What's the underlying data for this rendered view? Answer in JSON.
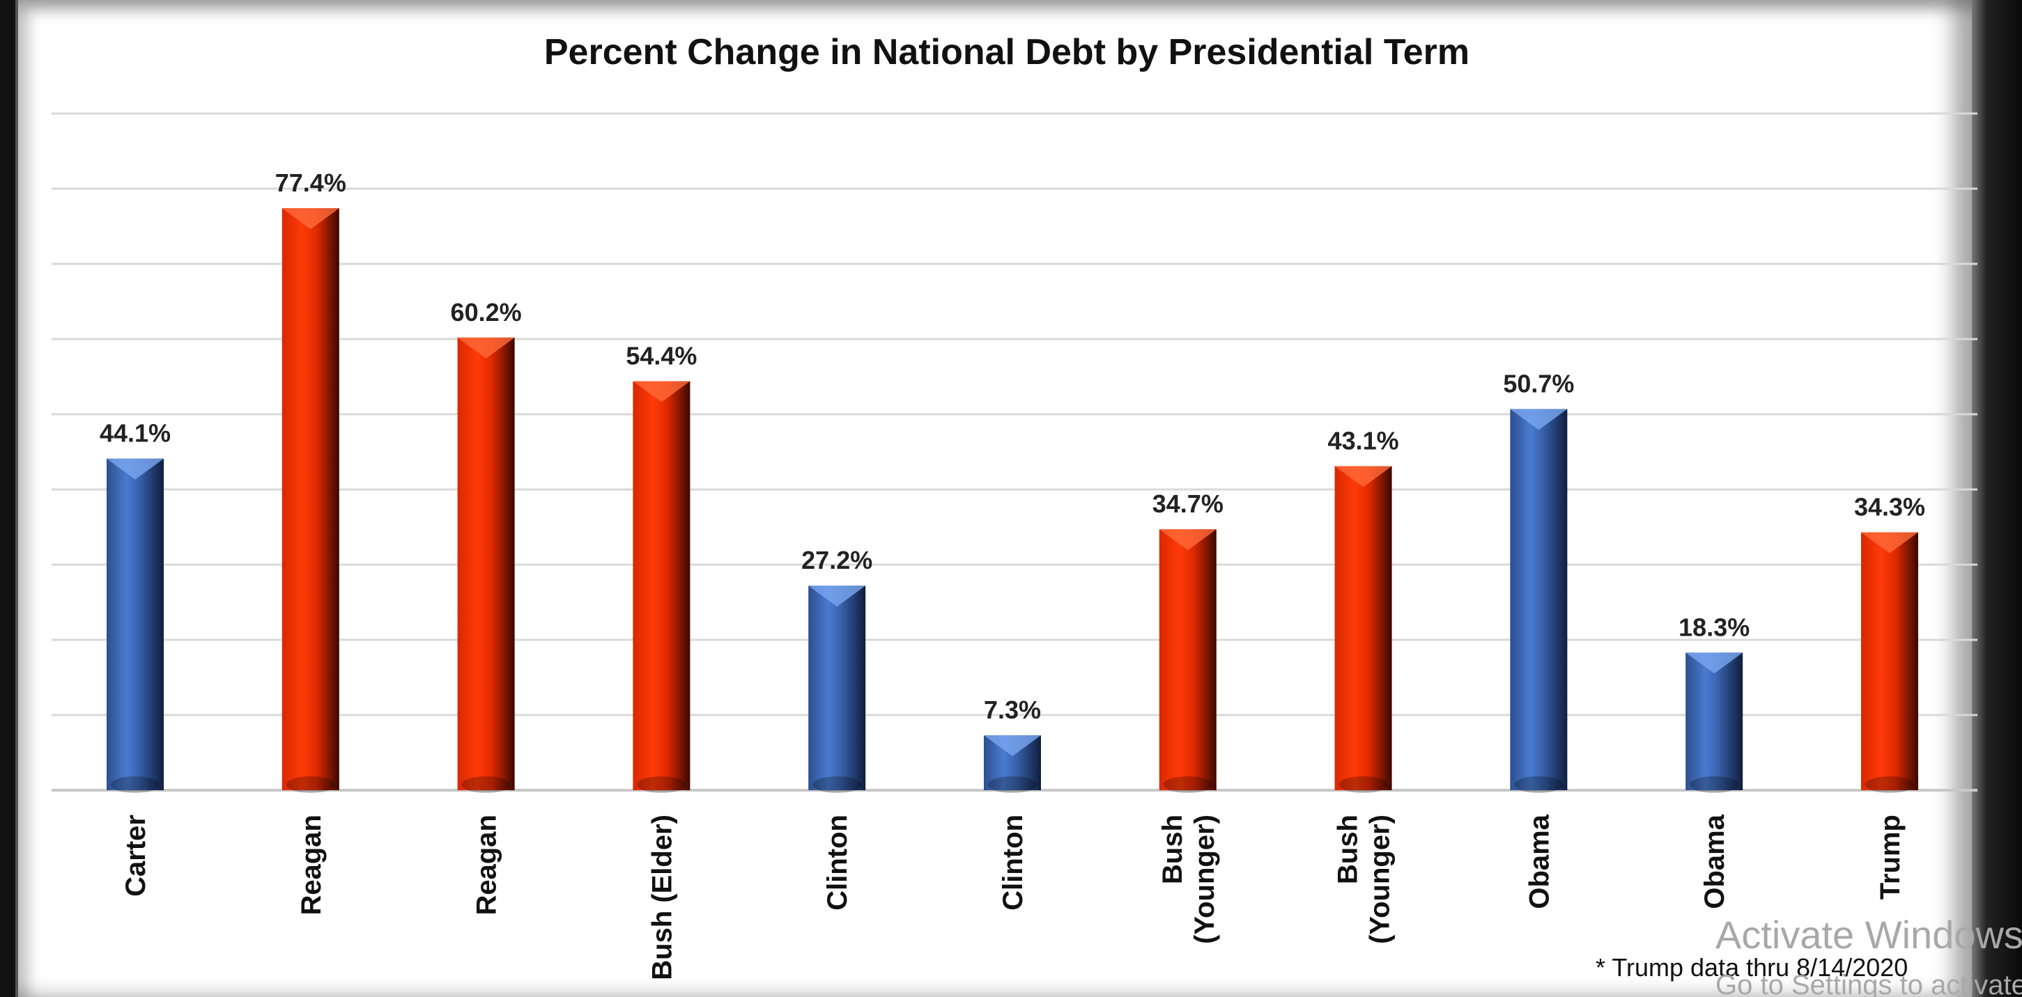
{
  "chart_data": {
    "type": "bar",
    "title": "Percent Change in National Debt by Presidential Term",
    "categories": [
      [
        "Carter"
      ],
      [
        "Reagan"
      ],
      [
        "Reagan"
      ],
      [
        "Bush (Elder)"
      ],
      [
        "Clinton"
      ],
      [
        "Clinton"
      ],
      [
        "Bush",
        "(Younger)"
      ],
      [
        "Bush",
        "(Younger)"
      ],
      [
        "Obama"
      ],
      [
        "Obama"
      ],
      [
        "Trump"
      ]
    ],
    "values": [
      44.1,
      77.4,
      60.2,
      54.4,
      27.2,
      7.3,
      34.7,
      43.1,
      50.7,
      18.3,
      34.3
    ],
    "value_labels": [
      "44.1%",
      "77.4%",
      "60.2%",
      "54.4%",
      "27.2%",
      "7.3%",
      "34.7%",
      "43.1%",
      "50.7%",
      "18.3%",
      "34.3%"
    ],
    "party": [
      "D",
      "R",
      "R",
      "R",
      "D",
      "D",
      "R",
      "R",
      "D",
      "D",
      "R"
    ],
    "colors": {
      "D": "#4472c4",
      "R": "#ff3300"
    },
    "xlabel": "",
    "ylabel": "",
    "ylim": [
      0,
      90
    ],
    "ytick_step": 10,
    "grid": true,
    "legend": "none",
    "footnote": "* Trump data thru 8/14/2020"
  },
  "watermark": {
    "line1": "Activate Windows",
    "line2": "Go to Settings to activate Windows."
  }
}
